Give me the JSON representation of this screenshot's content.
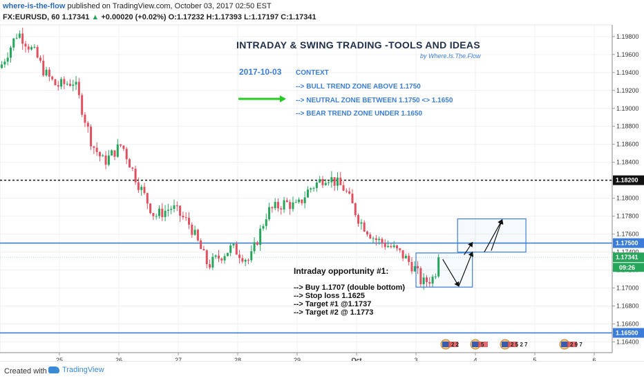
{
  "header": {
    "author": "where-is-the-flow",
    "published_text": "published on TradingView.com, October 03, 2017 02:50 EST",
    "symbol_line": "FX:EURUSD, 60",
    "last": "1.17341",
    "change_arrow": "▲",
    "change": "+0.00020 (+0.02%)",
    "ohlc": "O:1.17232 H:1.17393 L:1.17197 C:1.17341"
  },
  "footer": {
    "created_with": "Created with",
    "brand": "TradingView"
  },
  "annotations": {
    "title": "INTRADAY  & SWING TRADING -TOOLS AND IDEAS",
    "byline": "by Where.Is.The.Flow",
    "date": "2017-10-03",
    "context_label": "CONTEXT",
    "context_lines": [
      "--> BULL TREND ZONE ABOVE 1.1750",
      "--> NEUTRAL ZONE BETWEEN 1.1750 <> 1.1650",
      "--> BEAR TREND ZONE UNDER 1.1650"
    ],
    "opportunity_title": "Intraday opportunity #1:",
    "opportunity_lines": [
      "--> Buy 1.1707 (double bottom)",
      "--> Stop loss 1.1625",
      "--> Target #1 @1.1737",
      "--> Target #2 @ 1.1773"
    ]
  },
  "colors": {
    "up": "#26a65b",
    "down": "#e0505f",
    "level_line": "#3b7dd8",
    "text_blue": "#3b7dd8",
    "arrow_green": "#22cc22"
  },
  "chart_data": {
    "type": "candlestick",
    "symbol": "FX:EURUSD",
    "interval": "60",
    "x_ticks": [
      "25",
      "26",
      "27",
      "28",
      "29",
      "Oct",
      "3",
      "4",
      "5",
      "6"
    ],
    "y_ticks": [
      "1.19800",
      "1.19600",
      "1.19400",
      "1.19200",
      "1.19000",
      "1.18800",
      "1.18600",
      "1.18400",
      "1.18200",
      "1.18000",
      "1.17800",
      "1.17600",
      "1.17400",
      "1.17200",
      "1.17000",
      "1.16800",
      "1.16600",
      "1.16400"
    ],
    "ylim": [
      1.1628,
      1.1993
    ],
    "levels": [
      {
        "value": 1.182,
        "label": "1.18200",
        "style": "dotted-black"
      },
      {
        "value": 1.175,
        "label": "1.17500",
        "style": "solid-blue"
      },
      {
        "value": 1.165,
        "label": "1.16500",
        "style": "solid-blue"
      }
    ],
    "last_price_tag": {
      "value": 1.17341,
      "label": "1.17341",
      "countdown": "09:26"
    },
    "key_points": [
      {
        "x": 0.0,
        "y": 1.1945
      },
      {
        "x": 0.3,
        "y": 1.1985
      },
      {
        "x": 0.6,
        "y": 1.196
      },
      {
        "x": 0.75,
        "y": 1.194
      },
      {
        "x": 0.95,
        "y": 1.1925
      },
      {
        "x": 1.25,
        "y": 1.193
      },
      {
        "x": 1.55,
        "y": 1.186
      },
      {
        "x": 1.75,
        "y": 1.184
      },
      {
        "x": 2.05,
        "y": 1.186
      },
      {
        "x": 2.3,
        "y": 1.182
      },
      {
        "x": 2.6,
        "y": 1.178
      },
      {
        "x": 2.9,
        "y": 1.179
      },
      {
        "x": 3.2,
        "y": 1.177
      },
      {
        "x": 3.5,
        "y": 1.1725
      },
      {
        "x": 3.9,
        "y": 1.1745
      },
      {
        "x": 4.2,
        "y": 1.173
      },
      {
        "x": 4.5,
        "y": 1.1785
      },
      {
        "x": 4.8,
        "y": 1.1795
      },
      {
        "x": 5.0,
        "y": 1.179
      },
      {
        "x": 5.2,
        "y": 1.181
      },
      {
        "x": 5.5,
        "y": 1.1825
      },
      {
        "x": 5.8,
        "y": 1.181
      },
      {
        "x": 6.05,
        "y": 1.1775
      },
      {
        "x": 6.3,
        "y": 1.1755
      },
      {
        "x": 6.6,
        "y": 1.1745
      },
      {
        "x": 6.8,
        "y": 1.1735
      },
      {
        "x": 7.0,
        "y": 1.172
      },
      {
        "x": 7.1,
        "y": 1.1705
      },
      {
        "x": 7.3,
        "y": 1.1712
      },
      {
        "x": 7.4,
        "y": 1.1734
      }
    ],
    "boxes": [
      {
        "x0": 7.0,
        "x1": 7.95,
        "y0": 1.1701,
        "y1": 1.1739
      },
      {
        "x0": 7.7,
        "x1": 8.85,
        "y0": 1.174,
        "y1": 1.1777
      }
    ],
    "trade_path": [
      {
        "x": 7.45,
        "y": 1.1732
      },
      {
        "x": 7.72,
        "y": 1.1702
      },
      {
        "x": 7.95,
        "y": 1.174
      },
      {
        "x": 8.15,
        "y": 1.174
      },
      {
        "x": 8.45,
        "y": 1.1776
      }
    ],
    "event_markers": [
      {
        "x": 7.5,
        "label": "2 2"
      },
      {
        "x": 8.0,
        "label": "5"
      },
      {
        "x": 8.5,
        "label": "2 5 2 7"
      },
      {
        "x": 9.5,
        "label": "2 9 7"
      }
    ]
  }
}
